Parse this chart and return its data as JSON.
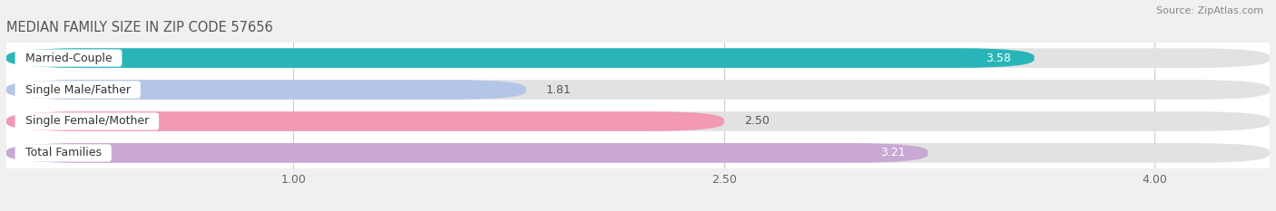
{
  "title": "MEDIAN FAMILY SIZE IN ZIP CODE 57656",
  "source": "Source: ZipAtlas.com",
  "categories": [
    "Married-Couple",
    "Single Male/Father",
    "Single Female/Mother",
    "Total Families"
  ],
  "values": [
    3.58,
    1.81,
    2.5,
    3.21
  ],
  "bar_colors": [
    "#29b5b8",
    "#b3c6e7",
    "#f299b4",
    "#c9a8d4"
  ],
  "xlim_data": [
    0.0,
    4.4
  ],
  "xlim_display": [
    0.65,
    4.35
  ],
  "xticks": [
    1.0,
    2.5,
    4.0
  ],
  "xtick_labels": [
    "1.00",
    "2.50",
    "4.00"
  ],
  "bar_height": 0.62,
  "title_fontsize": 10.5,
  "tick_fontsize": 9,
  "value_fontsize": 9,
  "label_fontsize": 9,
  "background_color": "#f0f0f0",
  "plot_bg_color": "#ffffff",
  "bar_bg_color": "#e2e2e2",
  "value_colors": [
    "#ffffff",
    "#555555",
    "#555555",
    "#ffffff"
  ]
}
